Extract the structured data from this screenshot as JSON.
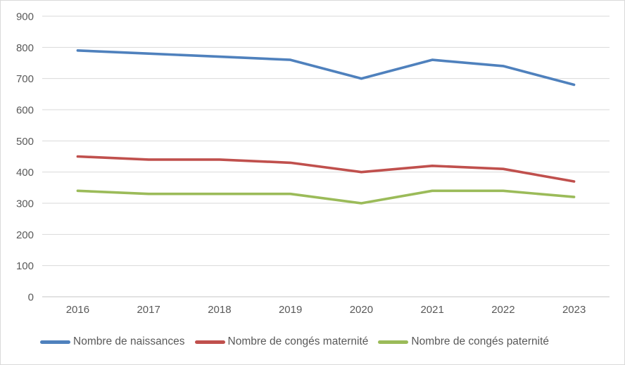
{
  "chart_data": {
    "type": "line",
    "categories": [
      "2016",
      "2017",
      "2018",
      "2019",
      "2020",
      "2021",
      "2022",
      "2023"
    ],
    "series": [
      {
        "name": "Nombre de naissances",
        "color": "#4F81BD",
        "values": [
          790,
          780,
          770,
          760,
          700,
          760,
          740,
          680
        ]
      },
      {
        "name": "Nombre de congés maternité",
        "color": "#C0504D",
        "values": [
          450,
          440,
          440,
          430,
          400,
          420,
          410,
          370
        ]
      },
      {
        "name": "Nombre de congés paternité",
        "color": "#9BBB59",
        "values": [
          340,
          330,
          330,
          330,
          300,
          340,
          340,
          320
        ]
      }
    ],
    "ylim": [
      0,
      900
    ],
    "yticks": [
      0,
      100,
      200,
      300,
      400,
      500,
      600,
      700,
      800,
      900
    ],
    "grid": true,
    "legend_position": "bottom"
  },
  "style": {
    "gridline_color": "#D9D9D9",
    "baseline_color": "#C6C6C6",
    "tick_label_color": "#595959",
    "border_color": "#D9D9D9",
    "background": "#FFFFFF"
  }
}
